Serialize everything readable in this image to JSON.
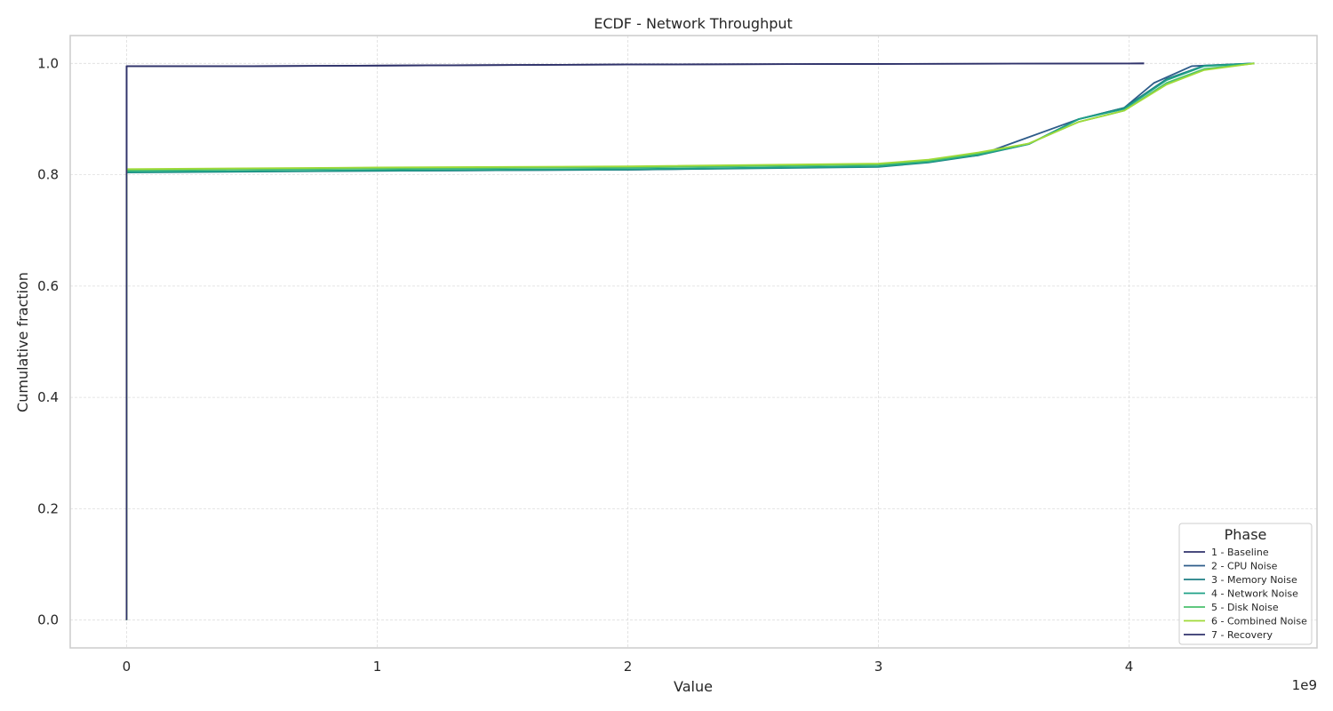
{
  "chart_data": {
    "type": "line",
    "title": "ECDF - Network Throughput",
    "xlabel": "Value",
    "ylabel": "Cumulative fraction",
    "x_offset_label": "1e9",
    "xlim": [
      -225000000,
      4750000000
    ],
    "ylim": [
      -0.05,
      1.05
    ],
    "x_ticks": [
      0,
      1000000000,
      2000000000,
      3000000000,
      4000000000
    ],
    "x_tick_labels": [
      "0",
      "1",
      "2",
      "3",
      "4"
    ],
    "y_ticks": [
      0.0,
      0.2,
      0.4,
      0.6,
      0.8,
      1.0
    ],
    "y_tick_labels": [
      "0.0",
      "0.2",
      "0.4",
      "0.6",
      "0.8",
      "1.0"
    ],
    "grid": true,
    "legend": {
      "title": "Phase",
      "placement": "bottom-right"
    },
    "series": [
      {
        "name": "1 - Baseline",
        "color": "#30336b",
        "x": [
          0,
          0,
          500000000,
          1000000000,
          2000000000,
          3000000000,
          4060000000
        ],
        "y": [
          0.0,
          0.995,
          0.995,
          0.996,
          0.998,
          0.999,
          1.0
        ]
      },
      {
        "name": "2 - CPU Noise",
        "color": "#2e5c8a",
        "x": [
          0,
          0,
          1000000000,
          2000000000,
          3000000000,
          3400000000,
          3800000000,
          3980000000,
          4100000000,
          4250000000,
          4500000000
        ],
        "y": [
          0.0,
          0.805,
          0.807,
          0.809,
          0.815,
          0.835,
          0.9,
          0.92,
          0.965,
          0.995,
          1.0
        ]
      },
      {
        "name": "3 - Memory Noise",
        "color": "#1f7f84",
        "x": [
          0,
          0,
          1000000000,
          2000000000,
          3000000000,
          3200000000,
          3400000000,
          3600000000,
          3800000000,
          3980000000,
          4150000000,
          4300000000,
          4500000000
        ],
        "y": [
          0.0,
          0.804,
          0.807,
          0.809,
          0.814,
          0.822,
          0.835,
          0.855,
          0.9,
          0.92,
          0.972,
          0.996,
          1.0
        ]
      },
      {
        "name": "4 - Network Noise",
        "color": "#1fa187",
        "x": [
          0,
          0,
          1000000000,
          2000000000,
          3000000000,
          3200000000,
          3400000000,
          3600000000,
          3800000000,
          3980000000,
          4150000000,
          4300000000,
          4500000000
        ],
        "y": [
          0.0,
          0.805,
          0.808,
          0.81,
          0.815,
          0.823,
          0.836,
          0.855,
          0.9,
          0.918,
          0.97,
          0.995,
          1.0
        ]
      },
      {
        "name": "5 - Disk Noise",
        "color": "#4ac16d",
        "x": [
          0,
          0,
          1000000000,
          2000000000,
          3000000000,
          3200000000,
          3400000000,
          3600000000,
          3800000000,
          3980000000,
          4150000000,
          4300000000,
          4500000000
        ],
        "y": [
          0.0,
          0.808,
          0.811,
          0.813,
          0.818,
          0.825,
          0.838,
          0.856,
          0.895,
          0.915,
          0.965,
          0.99,
          1.0
        ]
      },
      {
        "name": "6 - Combined Noise",
        "color": "#a0da39",
        "x": [
          0,
          0,
          1000000000,
          2000000000,
          3000000000,
          3200000000,
          3400000000,
          3600000000,
          3800000000,
          3980000000,
          4150000000,
          4300000000,
          4500000000
        ],
        "y": [
          0.0,
          0.81,
          0.813,
          0.815,
          0.82,
          0.827,
          0.84,
          0.856,
          0.895,
          0.915,
          0.962,
          0.988,
          1.0
        ]
      },
      {
        "name": "7 - Recovery",
        "color": "#30336b",
        "x": [
          0,
          0,
          500000000,
          1000000000,
          2000000000,
          3000000000,
          4060000000
        ],
        "y": [
          0.0,
          0.995,
          0.995,
          0.996,
          0.998,
          0.999,
          1.0
        ]
      }
    ]
  }
}
